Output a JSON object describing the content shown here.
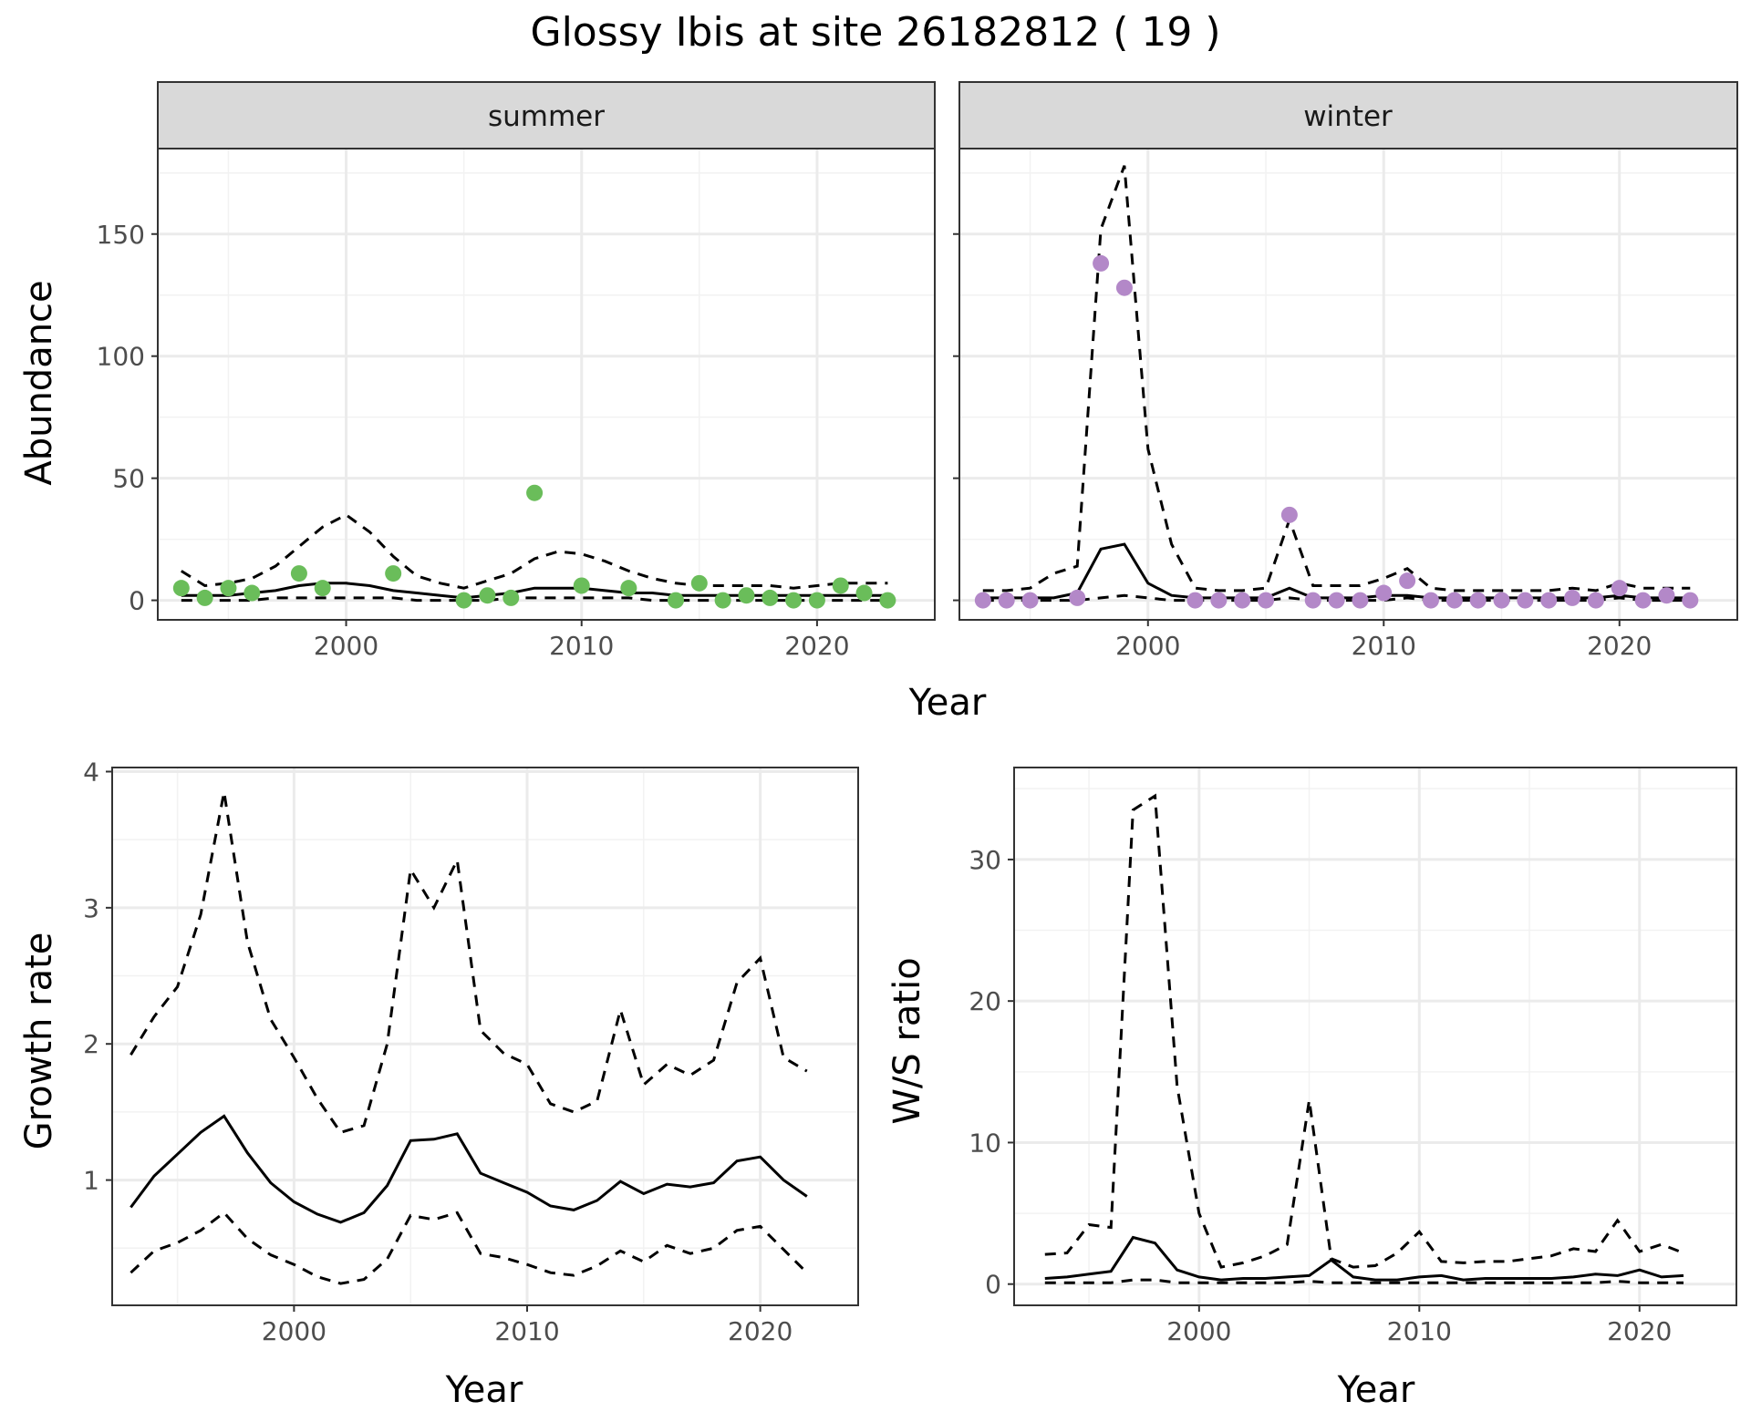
{
  "title": "Glossy Ibis at site 26182812 ( 19 )",
  "colors": {
    "summer_points": "#6abd5a",
    "winter_points": "#b388c8",
    "lines": "#000000",
    "strip_bg": "#d9d9d9",
    "grid": "#ebebeb"
  },
  "chart_data": [
    {
      "type": "scatter",
      "panel": "summer",
      "strip_label": "summer",
      "xlabel": "Year",
      "ylabel": "Abundance",
      "xlim": [
        1992,
        2025
      ],
      "ylim": [
        -8,
        185
      ],
      "xticks": [
        2000,
        2010,
        2020
      ],
      "yticks": [
        0,
        50,
        100,
        150
      ],
      "grid": true,
      "points": {
        "x": [
          1993,
          1994,
          1995,
          1996,
          1998,
          1999,
          2002,
          2005,
          2006,
          2007,
          2008,
          2010,
          2012,
          2014,
          2015,
          2016,
          2017,
          2018,
          2019,
          2020,
          2021,
          2022,
          2023
        ],
        "y": [
          5,
          1,
          5,
          3,
          11,
          5,
          11,
          0,
          2,
          1,
          44,
          6,
          5,
          0,
          7,
          0,
          2,
          1,
          0,
          0,
          6,
          3,
          0
        ]
      },
      "fit": {
        "x": [
          1993,
          1994,
          1995,
          1996,
          1997,
          1998,
          1999,
          2000,
          2001,
          2002,
          2003,
          2004,
          2005,
          2006,
          2007,
          2008,
          2009,
          2010,
          2011,
          2012,
          2013,
          2014,
          2015,
          2016,
          2017,
          2018,
          2019,
          2020,
          2021,
          2022,
          2023
        ],
        "y": [
          2,
          2,
          2,
          3,
          4,
          6,
          7,
          7,
          6,
          4,
          3,
          2,
          1,
          2,
          3,
          5,
          5,
          5,
          4,
          3,
          3,
          2,
          2,
          2,
          2,
          2,
          2,
          2,
          2,
          2,
          2
        ]
      },
      "upper": {
        "x": [
          1993,
          1994,
          1995,
          1996,
          1997,
          1998,
          1999,
          2000,
          2001,
          2002,
          2003,
          2004,
          2005,
          2006,
          2007,
          2008,
          2009,
          2010,
          2011,
          2012,
          2013,
          2014,
          2015,
          2016,
          2017,
          2018,
          2019,
          2020,
          2021,
          2022,
          2023
        ],
        "y": [
          12,
          6,
          7,
          9,
          14,
          22,
          30,
          35,
          28,
          18,
          10,
          7,
          5,
          8,
          11,
          17,
          20,
          19,
          16,
          12,
          9,
          7,
          6,
          6,
          6,
          6,
          5,
          6,
          7,
          7,
          7
        ]
      },
      "lower": {
        "x": [
          1993,
          1994,
          1995,
          1996,
          1997,
          1998,
          1999,
          2000,
          2001,
          2002,
          2003,
          2004,
          2005,
          2006,
          2007,
          2008,
          2009,
          2010,
          2011,
          2012,
          2013,
          2014,
          2015,
          2016,
          2017,
          2018,
          2019,
          2020,
          2021,
          2022,
          2023
        ],
        "y": [
          0,
          0,
          0,
          0,
          1,
          1,
          1,
          1,
          1,
          1,
          0,
          0,
          0,
          0,
          1,
          1,
          1,
          1,
          1,
          1,
          0,
          0,
          0,
          0,
          0,
          0,
          0,
          0,
          0,
          0,
          0
        ]
      }
    },
    {
      "type": "scatter",
      "panel": "winter",
      "strip_label": "winter",
      "xlabel": "Year",
      "ylabel": "Abundance",
      "xlim": [
        1992,
        2025
      ],
      "ylim": [
        -8,
        185
      ],
      "xticks": [
        2000,
        2010,
        2020
      ],
      "yticks": [
        0,
        50,
        100,
        150
      ],
      "grid": true,
      "points": {
        "x": [
          1993,
          1994,
          1995,
          1997,
          1998,
          1999,
          2002,
          2003,
          2004,
          2005,
          2006,
          2007,
          2008,
          2009,
          2010,
          2011,
          2012,
          2013,
          2014,
          2015,
          2016,
          2017,
          2018,
          2019,
          2020,
          2021,
          2022,
          2023
        ],
        "y": [
          0,
          0,
          0,
          1,
          138,
          128,
          0,
          0,
          0,
          0,
          35,
          0,
          0,
          0,
          3,
          8,
          0,
          0,
          0,
          0,
          0,
          0,
          1,
          0,
          5,
          0,
          2,
          0
        ]
      },
      "fit": {
        "x": [
          1993,
          1994,
          1995,
          1996,
          1997,
          1998,
          1999,
          2000,
          2001,
          2002,
          2003,
          2004,
          2005,
          2006,
          2007,
          2008,
          2009,
          2010,
          2011,
          2012,
          2013,
          2014,
          2015,
          2016,
          2017,
          2018,
          2019,
          2020,
          2021,
          2022,
          2023
        ],
        "y": [
          1,
          1,
          1,
          1,
          3,
          21,
          23,
          7,
          2,
          1,
          1,
          1,
          1,
          5,
          1,
          1,
          1,
          2,
          2,
          1,
          1,
          1,
          1,
          1,
          1,
          1,
          1,
          2,
          1,
          1,
          1
        ]
      },
      "upper": {
        "x": [
          1993,
          1994,
          1995,
          1996,
          1997,
          1998,
          1999,
          2000,
          2001,
          2002,
          2003,
          2004,
          2005,
          2006,
          2007,
          2008,
          2009,
          2010,
          2011,
          2012,
          2013,
          2014,
          2015,
          2016,
          2017,
          2018,
          2019,
          2020,
          2021,
          2022,
          2023
        ],
        "y": [
          4,
          4,
          5,
          11,
          14,
          152,
          178,
          62,
          23,
          5,
          4,
          4,
          5,
          33,
          6,
          6,
          6,
          9,
          13,
          5,
          4,
          4,
          4,
          4,
          4,
          5,
          4,
          7,
          5,
          5,
          5
        ]
      },
      "lower": {
        "x": [
          1993,
          1994,
          1995,
          1996,
          1997,
          1998,
          1999,
          2000,
          2001,
          2002,
          2003,
          2004,
          2005,
          2006,
          2007,
          2008,
          2009,
          2010,
          2011,
          2012,
          2013,
          2014,
          2015,
          2016,
          2017,
          2018,
          2019,
          2020,
          2021,
          2022,
          2023
        ],
        "y": [
          0,
          0,
          0,
          0,
          0,
          1,
          2,
          1,
          0,
          0,
          0,
          0,
          0,
          1,
          0,
          0,
          0,
          0,
          1,
          0,
          0,
          0,
          0,
          0,
          0,
          0,
          0,
          1,
          0,
          0,
          0
        ]
      }
    },
    {
      "type": "line",
      "panel": "growth",
      "xlabel": "Year",
      "ylabel": "Growth rate",
      "xlim": [
        1992.2,
        2024.2
      ],
      "ylim": [
        0.08,
        4.03
      ],
      "xticks": [
        2000,
        2010,
        2020
      ],
      "yticks": [
        1,
        2,
        3,
        4
      ],
      "grid": true,
      "x": [
        1993,
        1994,
        1995,
        1996,
        1997,
        1998,
        1999,
        2000,
        2001,
        2002,
        2003,
        2004,
        2005,
        2006,
        2007,
        2008,
        2009,
        2010,
        2011,
        2012,
        2013,
        2014,
        2015,
        2016,
        2017,
        2018,
        2019,
        2020,
        2021,
        2022
      ],
      "series": [
        {
          "role": "estimate",
          "values": [
            0.8,
            1.03,
            1.19,
            1.35,
            1.47,
            1.2,
            0.98,
            0.84,
            0.75,
            0.69,
            0.76,
            0.96,
            1.29,
            1.3,
            1.34,
            1.05,
            0.98,
            0.91,
            0.81,
            0.78,
            0.85,
            0.99,
            0.9,
            0.97,
            0.95,
            0.98,
            1.14,
            1.17,
            1.0,
            0.88
          ]
        },
        {
          "role": "upper",
          "values": [
            1.92,
            2.2,
            2.42,
            2.95,
            3.85,
            2.75,
            2.18,
            1.9,
            1.6,
            1.35,
            1.4,
            2.0,
            3.28,
            3.0,
            3.35,
            2.1,
            1.93,
            1.85,
            1.56,
            1.5,
            1.58,
            2.25,
            1.7,
            1.85,
            1.77,
            1.88,
            2.45,
            2.63,
            1.9,
            1.8
          ]
        },
        {
          "role": "lower",
          "values": [
            0.32,
            0.48,
            0.54,
            0.63,
            0.76,
            0.57,
            0.45,
            0.38,
            0.29,
            0.24,
            0.27,
            0.42,
            0.74,
            0.71,
            0.76,
            0.46,
            0.43,
            0.38,
            0.32,
            0.3,
            0.37,
            0.48,
            0.4,
            0.52,
            0.46,
            0.5,
            0.63,
            0.66,
            0.49,
            0.32
          ]
        }
      ]
    },
    {
      "type": "line",
      "panel": "ratio",
      "xlabel": "Year",
      "ylabel": "W/S ratio",
      "xlim": [
        1991.6,
        2024.4
      ],
      "ylim": [
        -1.5,
        36.5
      ],
      "xticks": [
        2000,
        2010,
        2020
      ],
      "yticks": [
        0,
        10,
        20,
        30
      ],
      "grid": true,
      "x": [
        1993,
        1994,
        1995,
        1996,
        1997,
        1998,
        1999,
        2000,
        2001,
        2002,
        2003,
        2004,
        2005,
        2006,
        2007,
        2008,
        2009,
        2010,
        2011,
        2012,
        2013,
        2014,
        2015,
        2016,
        2017,
        2018,
        2019,
        2020,
        2021,
        2022
      ],
      "series": [
        {
          "role": "estimate",
          "values": [
            0.4,
            0.5,
            0.7,
            0.9,
            3.3,
            2.9,
            1.0,
            0.5,
            0.3,
            0.4,
            0.4,
            0.5,
            0.6,
            1.7,
            0.5,
            0.3,
            0.3,
            0.5,
            0.6,
            0.3,
            0.4,
            0.4,
            0.4,
            0.4,
            0.5,
            0.7,
            0.6,
            1.0,
            0.5,
            0.6
          ]
        },
        {
          "role": "upper",
          "values": [
            2.1,
            2.2,
            4.2,
            4.0,
            33.5,
            34.5,
            14.0,
            5.0,
            1.2,
            1.5,
            2.0,
            2.8,
            13.0,
            1.8,
            1.2,
            1.3,
            2.2,
            3.7,
            1.6,
            1.5,
            1.6,
            1.6,
            1.8,
            2.0,
            2.5,
            2.3,
            4.5,
            2.3,
            2.8,
            2.2
          ]
        },
        {
          "role": "lower",
          "values": [
            0.1,
            0.1,
            0.1,
            0.1,
            0.3,
            0.3,
            0.1,
            0.1,
            0.1,
            0.1,
            0.1,
            0.1,
            0.2,
            0.1,
            0.1,
            0.1,
            0.1,
            0.1,
            0.1,
            0.1,
            0.1,
            0.1,
            0.1,
            0.1,
            0.1,
            0.1,
            0.2,
            0.1,
            0.1,
            0.1
          ]
        }
      ]
    }
  ]
}
